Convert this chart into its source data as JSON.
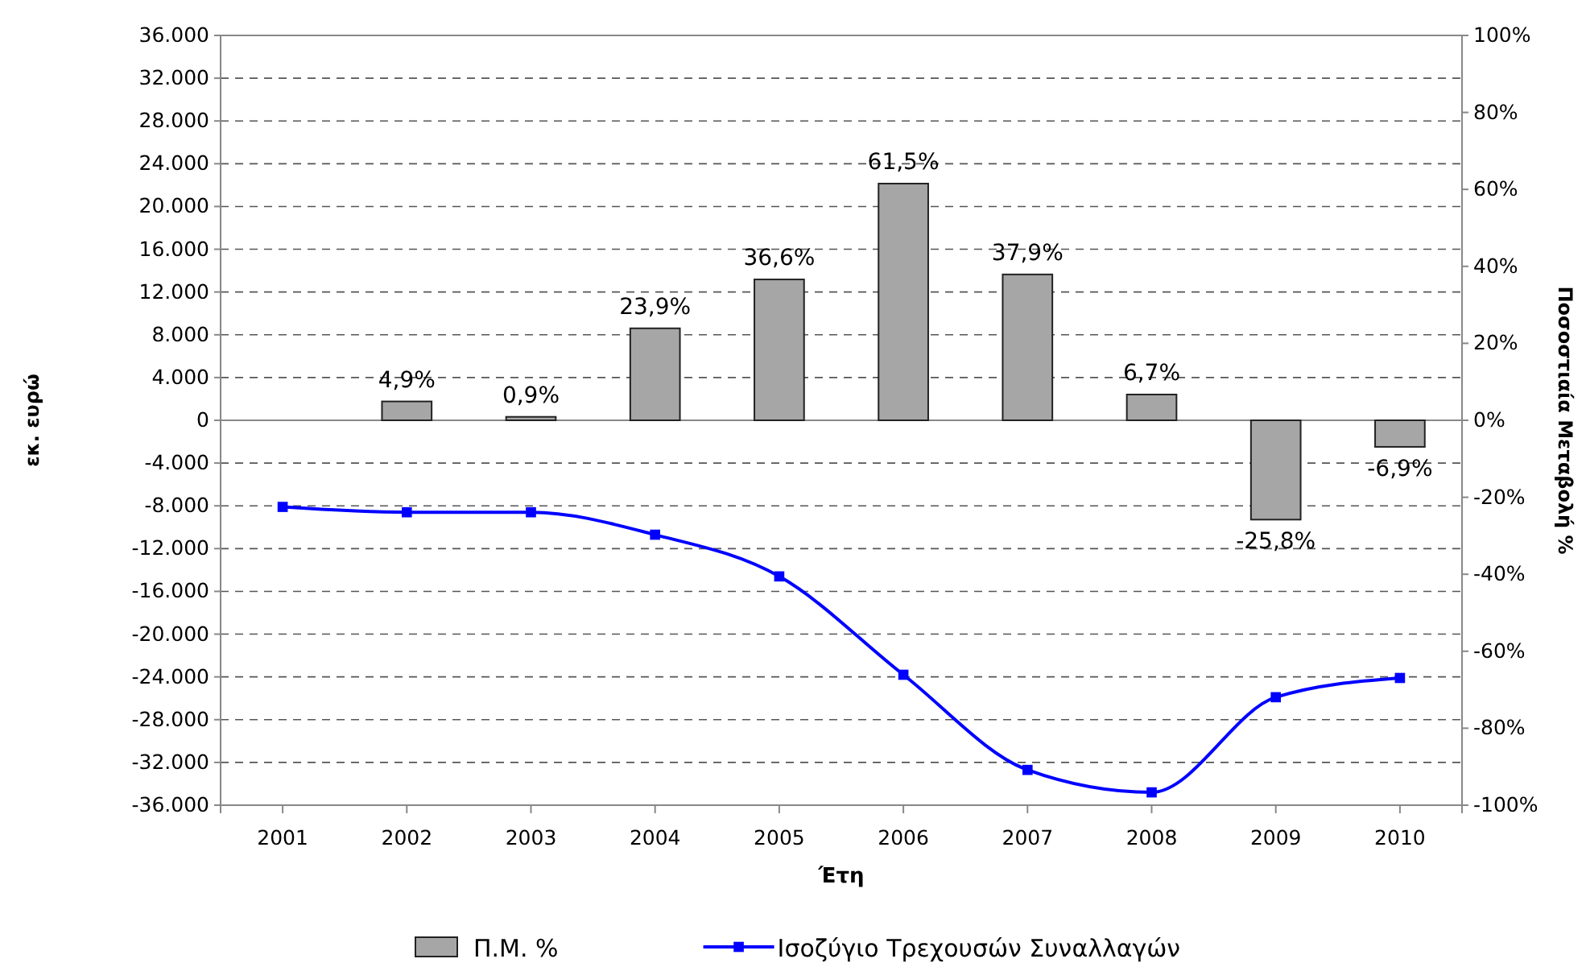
{
  "chart_data": {
    "type": "bar",
    "xlabel": "Έτη",
    "ylabel": "εκ. ευρώ",
    "y2label": "Ποσοστιαία Μεταβολή %",
    "categories": [
      "2001",
      "2002",
      "2003",
      "2004",
      "2005",
      "2006",
      "2007",
      "2008",
      "2009",
      "2010"
    ],
    "series": [
      {
        "name": "Π.Μ. %",
        "axis": "y2",
        "color": "#a6a6a6",
        "values": [
          null,
          4.9,
          0.9,
          23.9,
          36.6,
          61.5,
          37.9,
          6.7,
          -25.8,
          -6.9
        ],
        "value_labels": [
          null,
          "4,9%",
          "0,9%",
          "23,9%",
          "36,6%",
          "61,5%",
          "37,9%",
          "6,7%",
          "-25,8%",
          "-6,9%"
        ]
      },
      {
        "name": "Ισοζύγιο Τρεχουσών Συναλλαγών",
        "type": "line",
        "color": "#0000ff",
        "marker": "square",
        "values": [
          -8100,
          -8600,
          -8600,
          -10700,
          -14600,
          -23800,
          -32700,
          -34800,
          -25900,
          -24100
        ]
      }
    ],
    "ylim": [
      -36000,
      36000
    ],
    "yticks": [
      {
        "value": -36000,
        "label": "-36.000"
      },
      {
        "value": -32000,
        "label": "-32.000"
      },
      {
        "value": -28000,
        "label": "-28.000"
      },
      {
        "value": -24000,
        "label": "-24.000"
      },
      {
        "value": -20000,
        "label": "-20.000"
      },
      {
        "value": -16000,
        "label": "-16.000"
      },
      {
        "value": -12000,
        "label": "-12.000"
      },
      {
        "value": -8000,
        "label": "-8.000"
      },
      {
        "value": -4000,
        "label": "-4.000"
      },
      {
        "value": 0,
        "label": "0"
      },
      {
        "value": 4000,
        "label": "4.000"
      },
      {
        "value": 8000,
        "label": "8.000"
      },
      {
        "value": 12000,
        "label": "12.000"
      },
      {
        "value": 16000,
        "label": "16.000"
      },
      {
        "value": 20000,
        "label": "20.000"
      },
      {
        "value": 24000,
        "label": "24.000"
      },
      {
        "value": 28000,
        "label": "28.000"
      },
      {
        "value": 32000,
        "label": "32.000"
      },
      {
        "value": 36000,
        "label": "36.000"
      }
    ],
    "y2lim": [
      -100,
      100
    ],
    "y2ticks": [
      {
        "value": -100,
        "label": "-100%"
      },
      {
        "value": -80,
        "label": "-80%"
      },
      {
        "value": -60,
        "label": "-60%"
      },
      {
        "value": -40,
        "label": "-40%"
      },
      {
        "value": -20,
        "label": "-20%"
      },
      {
        "value": 0,
        "label": "0%"
      },
      {
        "value": 20,
        "label": "20%"
      },
      {
        "value": 40,
        "label": "40%"
      },
      {
        "value": 60,
        "label": "60%"
      },
      {
        "value": 80,
        "label": "80%"
      },
      {
        "value": 100,
        "label": "100%"
      }
    ],
    "grid": "y",
    "legend": "bottom"
  }
}
